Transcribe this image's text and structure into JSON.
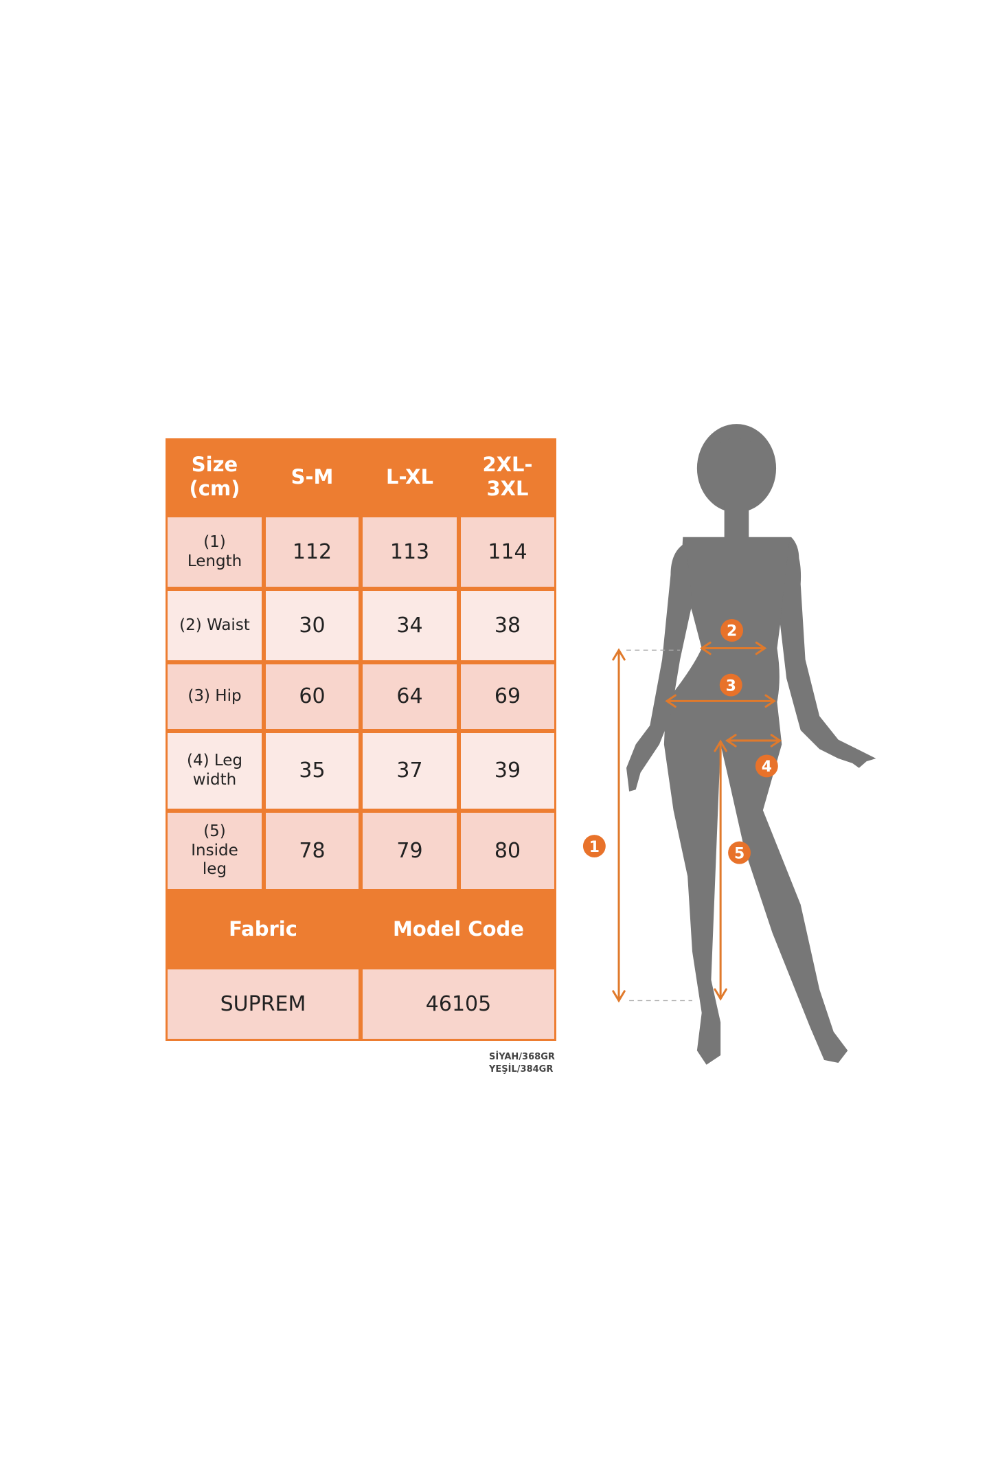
{
  "table": {
    "header": [
      "Size\n(cm)",
      "S-M",
      "L-XL",
      "2XL-\n3XL"
    ],
    "rows": [
      {
        "label": "(1)\nLength",
        "values": [
          "112",
          "113",
          "114"
        ]
      },
      {
        "label": "(2) Waist",
        "values": [
          "30",
          "34",
          "38"
        ]
      },
      {
        "label": "(3) Hip",
        "values": [
          "60",
          "64",
          "69"
        ]
      },
      {
        "label": "(4) Leg\nwidth",
        "values": [
          "35",
          "37",
          "39"
        ]
      },
      {
        "label": "(5)\nInside\nleg",
        "values": [
          "78",
          "79",
          "80"
        ]
      }
    ],
    "info_header": [
      "Fabric",
      "Model Code"
    ],
    "info_values": [
      "SUPREM",
      "46105"
    ]
  },
  "note": [
    "SİYAH/368GR",
    "YEŞİL/384GR"
  ],
  "figure": {
    "markers": [
      "1",
      "2",
      "3",
      "4",
      "5"
    ],
    "icon": "female-silhouette-icon"
  },
  "colors": {
    "accent": "#ed7d31",
    "cell_dark": "#f8d5cc",
    "cell_light": "#fbe9e5",
    "silhouette": "#777777",
    "arrow": "#e07a2c"
  }
}
